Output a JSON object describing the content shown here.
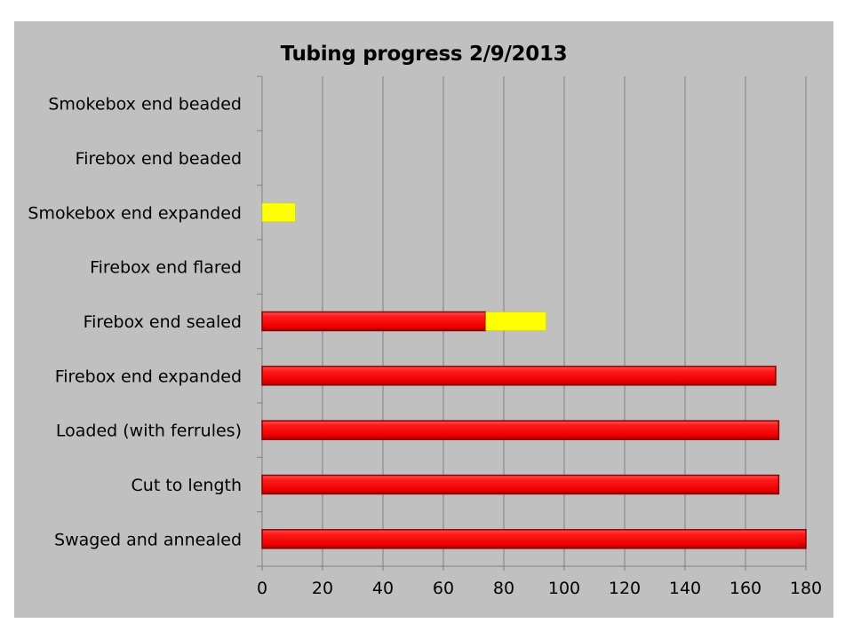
{
  "chart_data": {
    "type": "bar",
    "orientation": "horizontal",
    "stacked": true,
    "title": "Tubing progress 2/9/2013",
    "xlabel": "",
    "ylabel": "",
    "xlim": [
      0,
      180
    ],
    "x_ticks": [
      0,
      20,
      40,
      60,
      80,
      100,
      120,
      140,
      160,
      180
    ],
    "grid": "vertical",
    "legend": "none",
    "categories": [
      "Swaged and annealed",
      "Cut to length",
      "Loaded (with ferrules)",
      "Firebox end expanded",
      "Firebox end sealed",
      "Firebox end flared",
      "Smokebox end expanded",
      "Firebox end beaded",
      "Smokebox end beaded"
    ],
    "series": [
      {
        "color": "#ff0000",
        "values": [
          180,
          171,
          171,
          170,
          74,
          0,
          0,
          0,
          0
        ]
      },
      {
        "color": "#ffff00",
        "values": [
          0,
          0,
          0,
          0,
          20,
          0,
          11,
          0,
          0
        ]
      }
    ],
    "colors": {
      "background": "#c0c0c0",
      "gridline": "#808080",
      "page": "#ffffff"
    }
  }
}
